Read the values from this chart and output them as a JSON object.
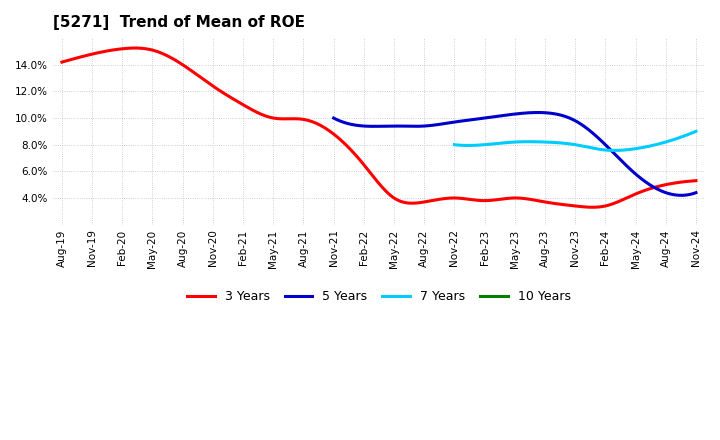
{
  "title": "[5271]  Trend of Mean of ROE",
  "ylim": [
    0.02,
    0.16
  ],
  "yticks": [
    0.04,
    0.06,
    0.08,
    0.1,
    0.12,
    0.14
  ],
  "x_labels": [
    "Aug-19",
    "Nov-19",
    "Feb-20",
    "May-20",
    "Aug-20",
    "Nov-20",
    "Feb-21",
    "May-21",
    "Aug-21",
    "Nov-21",
    "Feb-22",
    "May-22",
    "Aug-22",
    "Nov-22",
    "Feb-23",
    "May-23",
    "Aug-23",
    "Nov-23",
    "Feb-24",
    "May-24",
    "Aug-24",
    "Nov-24"
  ],
  "series": {
    "3 Years": {
      "color": "#FF0000",
      "linewidth": 2.2,
      "data": [
        0.142,
        0.148,
        0.152,
        0.151,
        0.14,
        0.124,
        0.11,
        0.1,
        0.099,
        0.088,
        0.065,
        0.04,
        0.037,
        0.04,
        0.038,
        0.04,
        0.037,
        0.034,
        0.034,
        0.043,
        0.05,
        0.053
      ]
    },
    "5 Years": {
      "color": "#0000CD",
      "linewidth": 2.2,
      "data": [
        null,
        null,
        null,
        null,
        null,
        null,
        null,
        null,
        null,
        0.1,
        0.094,
        0.094,
        0.094,
        0.097,
        0.1,
        0.103,
        0.104,
        0.098,
        0.08,
        0.058,
        0.044,
        0.044
      ]
    },
    "7 Years": {
      "color": "#00CCFF",
      "linewidth": 2.2,
      "data": [
        null,
        null,
        null,
        null,
        null,
        null,
        null,
        null,
        null,
        null,
        null,
        null,
        null,
        0.08,
        0.08,
        0.082,
        0.082,
        0.08,
        0.076,
        0.077,
        0.082,
        0.09
      ]
    },
    "10 Years": {
      "color": "#008000",
      "linewidth": 2.2,
      "data": [
        null,
        null,
        null,
        null,
        null,
        null,
        null,
        null,
        null,
        null,
        null,
        null,
        null,
        null,
        null,
        null,
        null,
        null,
        null,
        null,
        null,
        null
      ]
    }
  },
  "legend_items": [
    "3 Years",
    "5 Years",
    "7 Years",
    "10 Years"
  ],
  "legend_colors": [
    "#FF0000",
    "#0000CD",
    "#00CCFF",
    "#008000"
  ],
  "background_color": "#FFFFFF",
  "grid_color": "#BBBBBB",
  "title_fontsize": 11,
  "tick_fontsize": 7.5
}
